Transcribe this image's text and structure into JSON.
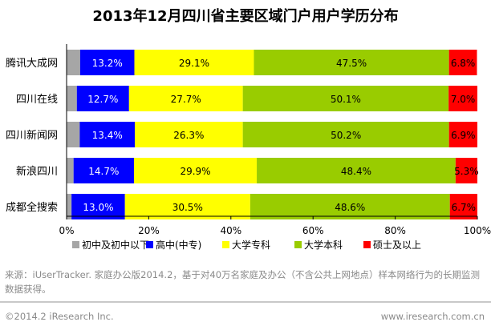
{
  "chart_data": {
    "type": "bar",
    "orientation": "horizontal",
    "stacked": true,
    "title": "2013年12月四川省主要区域门户用户学历分布",
    "categories": [
      "腾讯大成网",
      "四川在线",
      "四川新闻网",
      "新浪四川",
      "成都全搜索"
    ],
    "series": [
      {
        "name": "初中及初中以下",
        "color": "#a6a6a6",
        "values": [
          3.3,
          2.5,
          3.2,
          1.7,
          1.2
        ],
        "labels": [
          "",
          "",
          "",
          "",
          ""
        ]
      },
      {
        "name": "高中(中专)",
        "color": "#0000ff",
        "values": [
          13.2,
          12.7,
          13.4,
          14.7,
          13.0
        ],
        "labels": [
          "13.2%",
          "12.7%",
          "13.4%",
          "14.7%",
          "13.0%"
        ]
      },
      {
        "name": "大学专科",
        "color": "#ffff00",
        "values": [
          29.1,
          27.7,
          26.3,
          29.9,
          30.5
        ],
        "labels": [
          "29.1%",
          "27.7%",
          "26.3%",
          "29.9%",
          "30.5%"
        ]
      },
      {
        "name": "大学本科",
        "color": "#99cc00",
        "values": [
          47.5,
          50.1,
          50.2,
          48.4,
          48.6
        ],
        "labels": [
          "47.5%",
          "50.1%",
          "50.2%",
          "48.4%",
          "48.6%"
        ]
      },
      {
        "name": "硕士及以上",
        "color": "#ff0000",
        "values": [
          6.8,
          7.0,
          6.9,
          5.3,
          6.7
        ],
        "labels": [
          "6.8%",
          "7.0%",
          "6.9%",
          "5.3%",
          "6.7%"
        ]
      }
    ],
    "xlim": [
      0,
      100
    ],
    "xticks": [
      "0%",
      "20%",
      "40%",
      "60%",
      "80%",
      "100%"
    ],
    "grid": false,
    "legend": "bottom"
  },
  "source": "来源：iUserTracker. 家庭办公版2014.2，基于对40万名家庭及办公（不含公共上网地点）样本网络行为的长期监测数据获得。",
  "footer": {
    "copyright": "©2014.2 iResearch Inc.",
    "url": "www.iresearch.com.cn"
  }
}
